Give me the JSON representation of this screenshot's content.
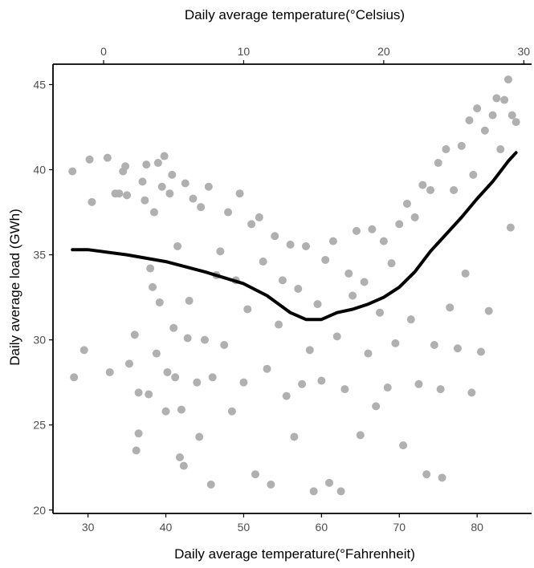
{
  "chart_data": {
    "type": "scatter",
    "title": "",
    "xlabel": "Daily average temperature(°Fahrenheit)",
    "x2label": "Daily average temperature(°Celsius)",
    "ylabel": "Daily average load (GWh)",
    "xlim": [
      25.5,
      87
    ],
    "ylim": [
      19.8,
      46.2
    ],
    "x_ticks": [
      30,
      40,
      50,
      60,
      70,
      80
    ],
    "x_tick_labels": [
      "30",
      "40",
      "50",
      "60",
      "70",
      "80"
    ],
    "x2_ticks": [
      0,
      10,
      20,
      30
    ],
    "x2_tick_labels": [
      "0",
      "10",
      "20",
      "30"
    ],
    "y_ticks": [
      20,
      25,
      30,
      35,
      40,
      45
    ],
    "y_tick_labels": [
      "20",
      "25",
      "30",
      "35",
      "40",
      "45"
    ],
    "grid": false,
    "colors": {
      "points": "#b0b0b0",
      "curve": "#000000",
      "axis": "#000000",
      "text": "#4d4d4d"
    },
    "series": [
      {
        "type": "scatter",
        "points": [
          [
            28,
            39.9
          ],
          [
            28.2,
            27.8
          ],
          [
            29.5,
            29.4
          ],
          [
            30.2,
            40.6
          ],
          [
            30.5,
            38.1
          ],
          [
            32.5,
            40.7
          ],
          [
            32.8,
            28.1
          ],
          [
            33.5,
            38.6
          ],
          [
            34,
            38.6
          ],
          [
            34.5,
            39.9
          ],
          [
            34.8,
            40.2
          ],
          [
            35,
            38.5
          ],
          [
            35.3,
            28.6
          ],
          [
            36,
            30.3
          ],
          [
            36.2,
            23.5
          ],
          [
            36.5,
            24.5
          ],
          [
            36.5,
            26.9
          ],
          [
            37,
            39.3
          ],
          [
            37.3,
            38.2
          ],
          [
            37.5,
            40.3
          ],
          [
            37.8,
            26.8
          ],
          [
            38,
            34.2
          ],
          [
            38.3,
            33.1
          ],
          [
            38.5,
            37.5
          ],
          [
            38.8,
            29.2
          ],
          [
            39,
            40.4
          ],
          [
            39.2,
            32.2
          ],
          [
            39.5,
            39
          ],
          [
            39.8,
            40.8
          ],
          [
            40,
            25.8
          ],
          [
            40.2,
            28.1
          ],
          [
            40.5,
            38.6
          ],
          [
            40.8,
            39.7
          ],
          [
            41,
            30.7
          ],
          [
            41.2,
            27.8
          ],
          [
            41.5,
            35.5
          ],
          [
            41.8,
            23.1
          ],
          [
            42,
            25.9
          ],
          [
            42.3,
            22.6
          ],
          [
            42.5,
            39.2
          ],
          [
            42.8,
            30.1
          ],
          [
            43,
            32.3
          ],
          [
            43.5,
            38.3
          ],
          [
            44,
            27.5
          ],
          [
            44.3,
            24.3
          ],
          [
            44.5,
            37.8
          ],
          [
            45,
            30
          ],
          [
            45.5,
            39
          ],
          [
            45.8,
            21.5
          ],
          [
            46,
            27.8
          ],
          [
            46.5,
            33.8
          ],
          [
            47,
            35.2
          ],
          [
            47.5,
            29.7
          ],
          [
            48,
            37.5
          ],
          [
            48.5,
            25.8
          ],
          [
            49,
            33.5
          ],
          [
            49.5,
            38.6
          ],
          [
            50,
            27.5
          ],
          [
            50.5,
            31.8
          ],
          [
            51,
            36.8
          ],
          [
            51.5,
            22.1
          ],
          [
            52,
            37.2
          ],
          [
            52.5,
            34.6
          ],
          [
            53,
            28.3
          ],
          [
            53.5,
            21.5
          ],
          [
            54,
            36.1
          ],
          [
            54.5,
            30.9
          ],
          [
            55,
            33.5
          ],
          [
            55.5,
            26.7
          ],
          [
            56,
            35.6
          ],
          [
            56.5,
            24.3
          ],
          [
            57,
            33
          ],
          [
            57.5,
            27.4
          ],
          [
            58,
            35.5
          ],
          [
            58.5,
            29.4
          ],
          [
            59,
            21.1
          ],
          [
            59.5,
            32.1
          ],
          [
            60,
            27.6
          ],
          [
            60.5,
            34.7
          ],
          [
            61,
            21.6
          ],
          [
            61.5,
            35.8
          ],
          [
            62,
            30.2
          ],
          [
            62.5,
            21.1
          ],
          [
            63,
            27.1
          ],
          [
            63.5,
            33.9
          ],
          [
            64,
            32.6
          ],
          [
            64.5,
            36.4
          ],
          [
            65,
            24.4
          ],
          [
            65.5,
            33.4
          ],
          [
            66,
            29.2
          ],
          [
            66.5,
            36.5
          ],
          [
            67,
            26.1
          ],
          [
            67.5,
            31.6
          ],
          [
            68,
            35.8
          ],
          [
            68.5,
            27.2
          ],
          [
            69,
            34.5
          ],
          [
            69.5,
            29.8
          ],
          [
            70,
            36.8
          ],
          [
            70.5,
            23.8
          ],
          [
            71,
            38
          ],
          [
            71.5,
            31.2
          ],
          [
            72,
            37.2
          ],
          [
            72.5,
            27.4
          ],
          [
            73,
            39.1
          ],
          [
            73.5,
            22.1
          ],
          [
            74,
            38.8
          ],
          [
            74.5,
            29.7
          ],
          [
            75,
            40.4
          ],
          [
            75.3,
            27.1
          ],
          [
            75.5,
            21.9
          ],
          [
            76,
            41.2
          ],
          [
            76.5,
            31.9
          ],
          [
            77,
            38.8
          ],
          [
            77.5,
            29.5
          ],
          [
            78,
            41.4
          ],
          [
            78.5,
            33.9
          ],
          [
            79,
            42.9
          ],
          [
            79.3,
            26.9
          ],
          [
            79.5,
            39.7
          ],
          [
            80,
            43.6
          ],
          [
            80.5,
            29.3
          ],
          [
            81,
            42.3
          ],
          [
            81.5,
            31.7
          ],
          [
            82,
            43.2
          ],
          [
            82.5,
            44.2
          ],
          [
            83,
            41.2
          ],
          [
            83.5,
            44.1
          ],
          [
            84,
            45.3
          ],
          [
            84.3,
            36.6
          ],
          [
            84.5,
            43.2
          ],
          [
            85,
            42.8
          ]
        ]
      },
      {
        "type": "line",
        "points": [
          [
            28,
            35.3
          ],
          [
            30,
            35.3
          ],
          [
            35,
            35
          ],
          [
            40,
            34.6
          ],
          [
            45,
            34
          ],
          [
            50,
            33.3
          ],
          [
            53,
            32.6
          ],
          [
            56,
            31.6
          ],
          [
            58,
            31.2
          ],
          [
            60,
            31.2
          ],
          [
            62,
            31.6
          ],
          [
            64,
            31.8
          ],
          [
            66,
            32.1
          ],
          [
            68,
            32.5
          ],
          [
            70,
            33.1
          ],
          [
            72,
            34
          ],
          [
            74,
            35.2
          ],
          [
            76,
            36.2
          ],
          [
            78,
            37.2
          ],
          [
            80,
            38.3
          ],
          [
            82,
            39.3
          ],
          [
            84,
            40.5
          ],
          [
            85,
            41
          ]
        ]
      }
    ]
  }
}
